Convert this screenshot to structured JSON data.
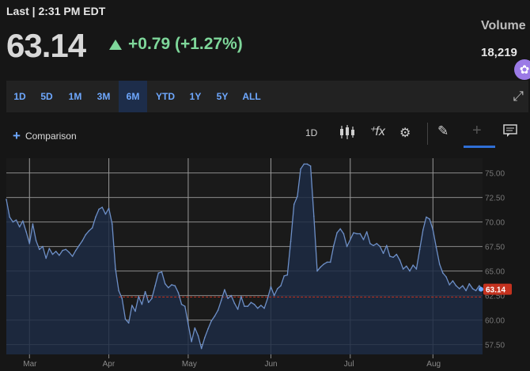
{
  "quote": {
    "last_time": "Last | 2:31 PM EDT",
    "price": "63.14",
    "change": "+0.79 (+1.27%)",
    "volume_label": "Volume",
    "volume_value": "18,219"
  },
  "ranges": [
    "1D",
    "5D",
    "1M",
    "3M",
    "6M",
    "YTD",
    "1Y",
    "5Y",
    "ALL"
  ],
  "active_range": "6M",
  "toolbar": {
    "comparison_label": "Comparison",
    "interval_label": "1D"
  },
  "colors": {
    "background": "#161616",
    "accent": "#6ea8ff",
    "positive": "#7ed79a",
    "line": "#6d8fc7",
    "last_marker": "#c4321f"
  },
  "chart_data": {
    "type": "area",
    "ylim": [
      56.5,
      76.5
    ],
    "ytick_values": [
      57.5,
      60,
      62.5,
      65,
      67.5,
      70,
      72.5,
      75
    ],
    "ytick_labels": [
      "57.50",
      "60.00",
      "62.50",
      "65.00",
      "67.50",
      "70.00",
      "72.50",
      "75.00"
    ],
    "month_labels": [
      "Mar",
      "Apr",
      "May",
      "Jun",
      "Jul",
      "Aug"
    ],
    "month_index": [
      7,
      31,
      55,
      80,
      104,
      129
    ],
    "last_price": 63.14,
    "last_price_label": "63.14",
    "previous_close": 62.35,
    "values": [
      72.3,
      70.5,
      70.0,
      70.2,
      69.5,
      70.1,
      69.0,
      67.8,
      69.8,
      68.1,
      67.2,
      67.5,
      66.3,
      67.3,
      66.7,
      67.0,
      66.6,
      67.1,
      67.2,
      66.9,
      66.5,
      67.1,
      67.6,
      68.1,
      68.7,
      69.1,
      69.4,
      70.5,
      71.3,
      71.5,
      70.8,
      71.4,
      69.8,
      65.2,
      63.0,
      62.2,
      60.1,
      59.7,
      61.5,
      60.9,
      62.4,
      61.6,
      62.9,
      61.8,
      62.2,
      63.5,
      64.8,
      64.9,
      63.7,
      63.3,
      63.6,
      63.5,
      62.8,
      61.6,
      61.4,
      59.6,
      57.8,
      59.2,
      58.4,
      57.1,
      58.2,
      59.1,
      59.9,
      60.4,
      61.0,
      62.0,
      63.1,
      62.2,
      62.5,
      61.7,
      61.1,
      62.4,
      61.4,
      61.4,
      61.8,
      61.6,
      61.2,
      61.5,
      61.2,
      62.2,
      63.4,
      62.5,
      63.2,
      63.5,
      64.5,
      64.6,
      68.0,
      71.8,
      72.6,
      75.4,
      75.9,
      75.9,
      75.7,
      70.6,
      65.0,
      65.4,
      65.7,
      65.9,
      65.9,
      67.6,
      68.9,
      69.3,
      68.8,
      67.5,
      68.2,
      68.9,
      68.8,
      68.8,
      68.2,
      69.0,
      67.8,
      67.6,
      67.8,
      67.5,
      66.8,
      67.6,
      66.5,
      66.4,
      66.7,
      66.1,
      65.2,
      65.5,
      65.0,
      65.6,
      65.2,
      67.2,
      69.2,
      70.5,
      70.3,
      69.2,
      67.4,
      65.7,
      64.8,
      64.4,
      63.6,
      64.0,
      63.5,
      63.2,
      63.5,
      63.0,
      63.7,
      63.2,
      63.0,
      63.5,
      63.14
    ]
  }
}
